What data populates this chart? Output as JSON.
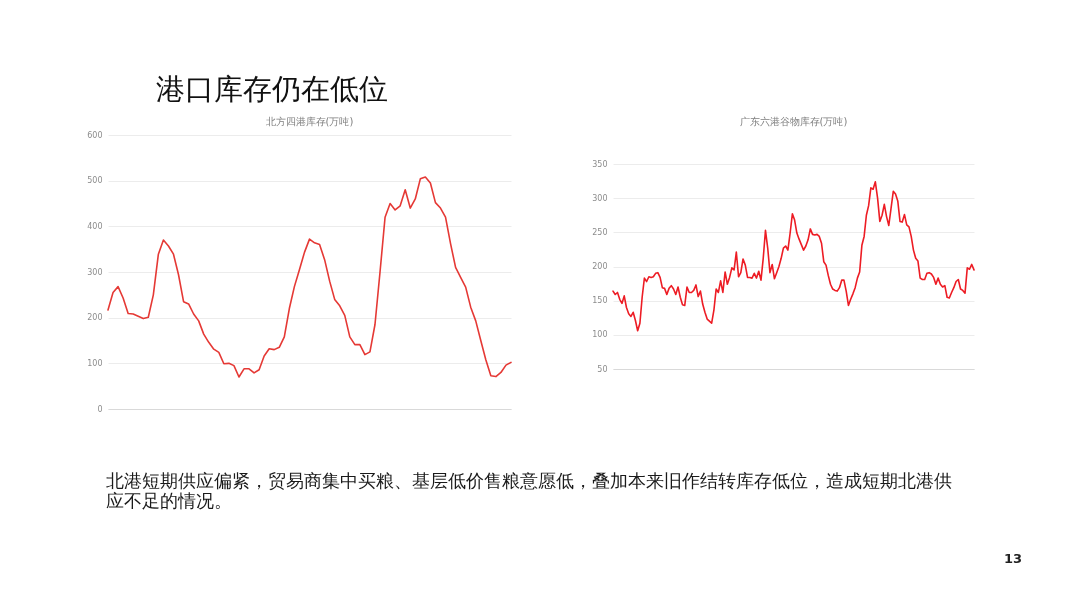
{
  "chart_data": [
    {
      "type": "other",
      "title": "港口库存仍在低位"
    },
    {
      "type": "line",
      "title": "北方四港库存(万吨)",
      "categories": [
        null,
        null,
        null,
        null,
        null,
        null,
        null,
        null,
        null,
        null,
        null,
        null,
        null,
        null,
        null,
        null,
        null,
        null,
        null,
        null,
        null,
        null,
        null,
        null,
        null,
        null,
        null,
        null,
        null,
        null,
        null,
        null,
        null,
        null,
        null,
        null,
        null,
        null,
        null,
        null,
        null,
        null,
        null,
        null,
        null,
        null,
        null,
        null,
        null,
        null,
        null,
        null,
        null,
        null,
        null,
        null,
        null,
        null,
        null,
        null,
        null,
        null,
        null,
        null,
        null,
        null,
        null,
        null,
        null,
        null,
        null,
        null,
        null,
        null,
        null,
        null,
        null,
        null,
        null,
        null,
        null
      ],
      "series": [
        {
          "color": "#e53935",
          "values": [
            217,
            255,
            268,
            243,
            209,
            208,
            203,
            198,
            201,
            250,
            339,
            370,
            357,
            339,
            294,
            235,
            230,
            208,
            193,
            164,
            146,
            131,
            124,
            99,
            100,
            95,
            70,
            88,
            88,
            79,
            86,
            116,
            132,
            130,
            135,
            158,
            220,
            268,
            305,
            343,
            372,
            364,
            360,
            327,
            280,
            240,
            226,
            205,
            158,
            141,
            141,
            119,
            125,
            185,
            300,
            420,
            450,
            436,
            445,
            480,
            440,
            460,
            504,
            508,
            495,
            452,
            440,
            420,
            362,
            310,
            288,
            267,
            223,
            193,
            150,
            108,
            73,
            71,
            80,
            96,
            102
          ]
        }
      ],
      "ylim": [
        0,
        600
      ],
      "yticks": [
        0,
        100,
        200,
        300,
        400,
        500,
        600
      ],
      "grid": "y",
      "tick_labels": "y",
      "line_style": "solid"
    },
    {
      "type": "line",
      "title": "广东六港谷物库存(万吨)",
      "categories": [
        null,
        null,
        null,
        null,
        null,
        null,
        null,
        null,
        null,
        null,
        null,
        null,
        null,
        null,
        null,
        null,
        null,
        null,
        null,
        null,
        null,
        null,
        null,
        null,
        null,
        null,
        null,
        null,
        null,
        null,
        null,
        null,
        null,
        null,
        null,
        null,
        null,
        null,
        null,
        null,
        null,
        null,
        null,
        null,
        null,
        null,
        null,
        null,
        null,
        null,
        null,
        null,
        null,
        null,
        null,
        null,
        null,
        null,
        null,
        null,
        null,
        null,
        null,
        null,
        null,
        null,
        null,
        null,
        null,
        null,
        null,
        null,
        null,
        null,
        null,
        null,
        null,
        null,
        null,
        null,
        null,
        null,
        null,
        null,
        null,
        null,
        null,
        null,
        null,
        null,
        null,
        null,
        null,
        null,
        null,
        null,
        null,
        null,
        null,
        null,
        null,
        null,
        null,
        null,
        null,
        null,
        null,
        null,
        null,
        null,
        null,
        null,
        null,
        null,
        null,
        null,
        null,
        null,
        null,
        null,
        null,
        null,
        null,
        null,
        null,
        null,
        null,
        null,
        null,
        null,
        null,
        null,
        null,
        null,
        null,
        null,
        null,
        null,
        null,
        null,
        null,
        null,
        null,
        null,
        null,
        null,
        null,
        null,
        null,
        null,
        null,
        null,
        null,
        null,
        null,
        null,
        null,
        null,
        null,
        null,
        null,
        null
      ],
      "series": [
        {
          "color": "#ed1c24",
          "values": [
            164,
            159,
            162,
            152,
            146,
            157,
            140,
            131,
            127,
            133,
            121,
            106,
            117,
            155,
            183,
            178,
            185,
            184,
            185,
            190,
            191,
            184,
            169,
            168,
            159,
            168,
            172,
            167,
            159,
            170,
            155,
            144,
            143,
            170,
            162,
            162,
            165,
            173,
            156,
            164,
            145,
            133,
            123,
            120,
            117,
            136,
            167,
            162,
            179,
            162,
            192,
            174,
            184,
            198,
            195,
            221,
            185,
            191,
            211,
            202,
            184,
            184,
            183,
            190,
            183,
            193,
            180,
            212,
            253,
            227,
            191,
            203,
            182,
            191,
            200,
            212,
            227,
            230,
            224,
            249,
            277,
            268,
            249,
            240,
            232,
            224,
            230,
            239,
            255,
            247,
            246,
            247,
            244,
            234,
            207,
            202,
            187,
            174,
            167,
            165,
            164,
            169,
            180,
            180,
            164,
            143,
            152,
            160,
            169,
            183,
            192,
            231,
            244,
            275,
            289,
            315,
            313,
            324,
            300,
            266,
            275,
            291,
            273,
            260,
            285,
            310,
            306,
            296,
            266,
            265,
            276,
            261,
            258,
            244,
            224,
            212,
            208,
            183,
            181,
            181,
            190,
            191,
            189,
            184,
            174,
            183,
            174,
            170,
            172,
            155,
            154,
            162,
            169,
            178,
            181,
            167,
            165,
            161,
            198,
            196,
            203,
            195
          ]
        }
      ],
      "ylim": [
        50,
        350
      ],
      "yticks": [
        50,
        100,
        150,
        200,
        250,
        300,
        350
      ],
      "grid": "y",
      "tick_labels": "y",
      "line_style": "solid"
    },
    {
      "type": "other",
      "annotations": [
        "北港短期供应偏紧，贸易商集中买粮、基层低价售粮意愿低，叠加本来旧作结转库存低位，造成短期北港供应不足的情况。",
        "13"
      ]
    }
  ]
}
